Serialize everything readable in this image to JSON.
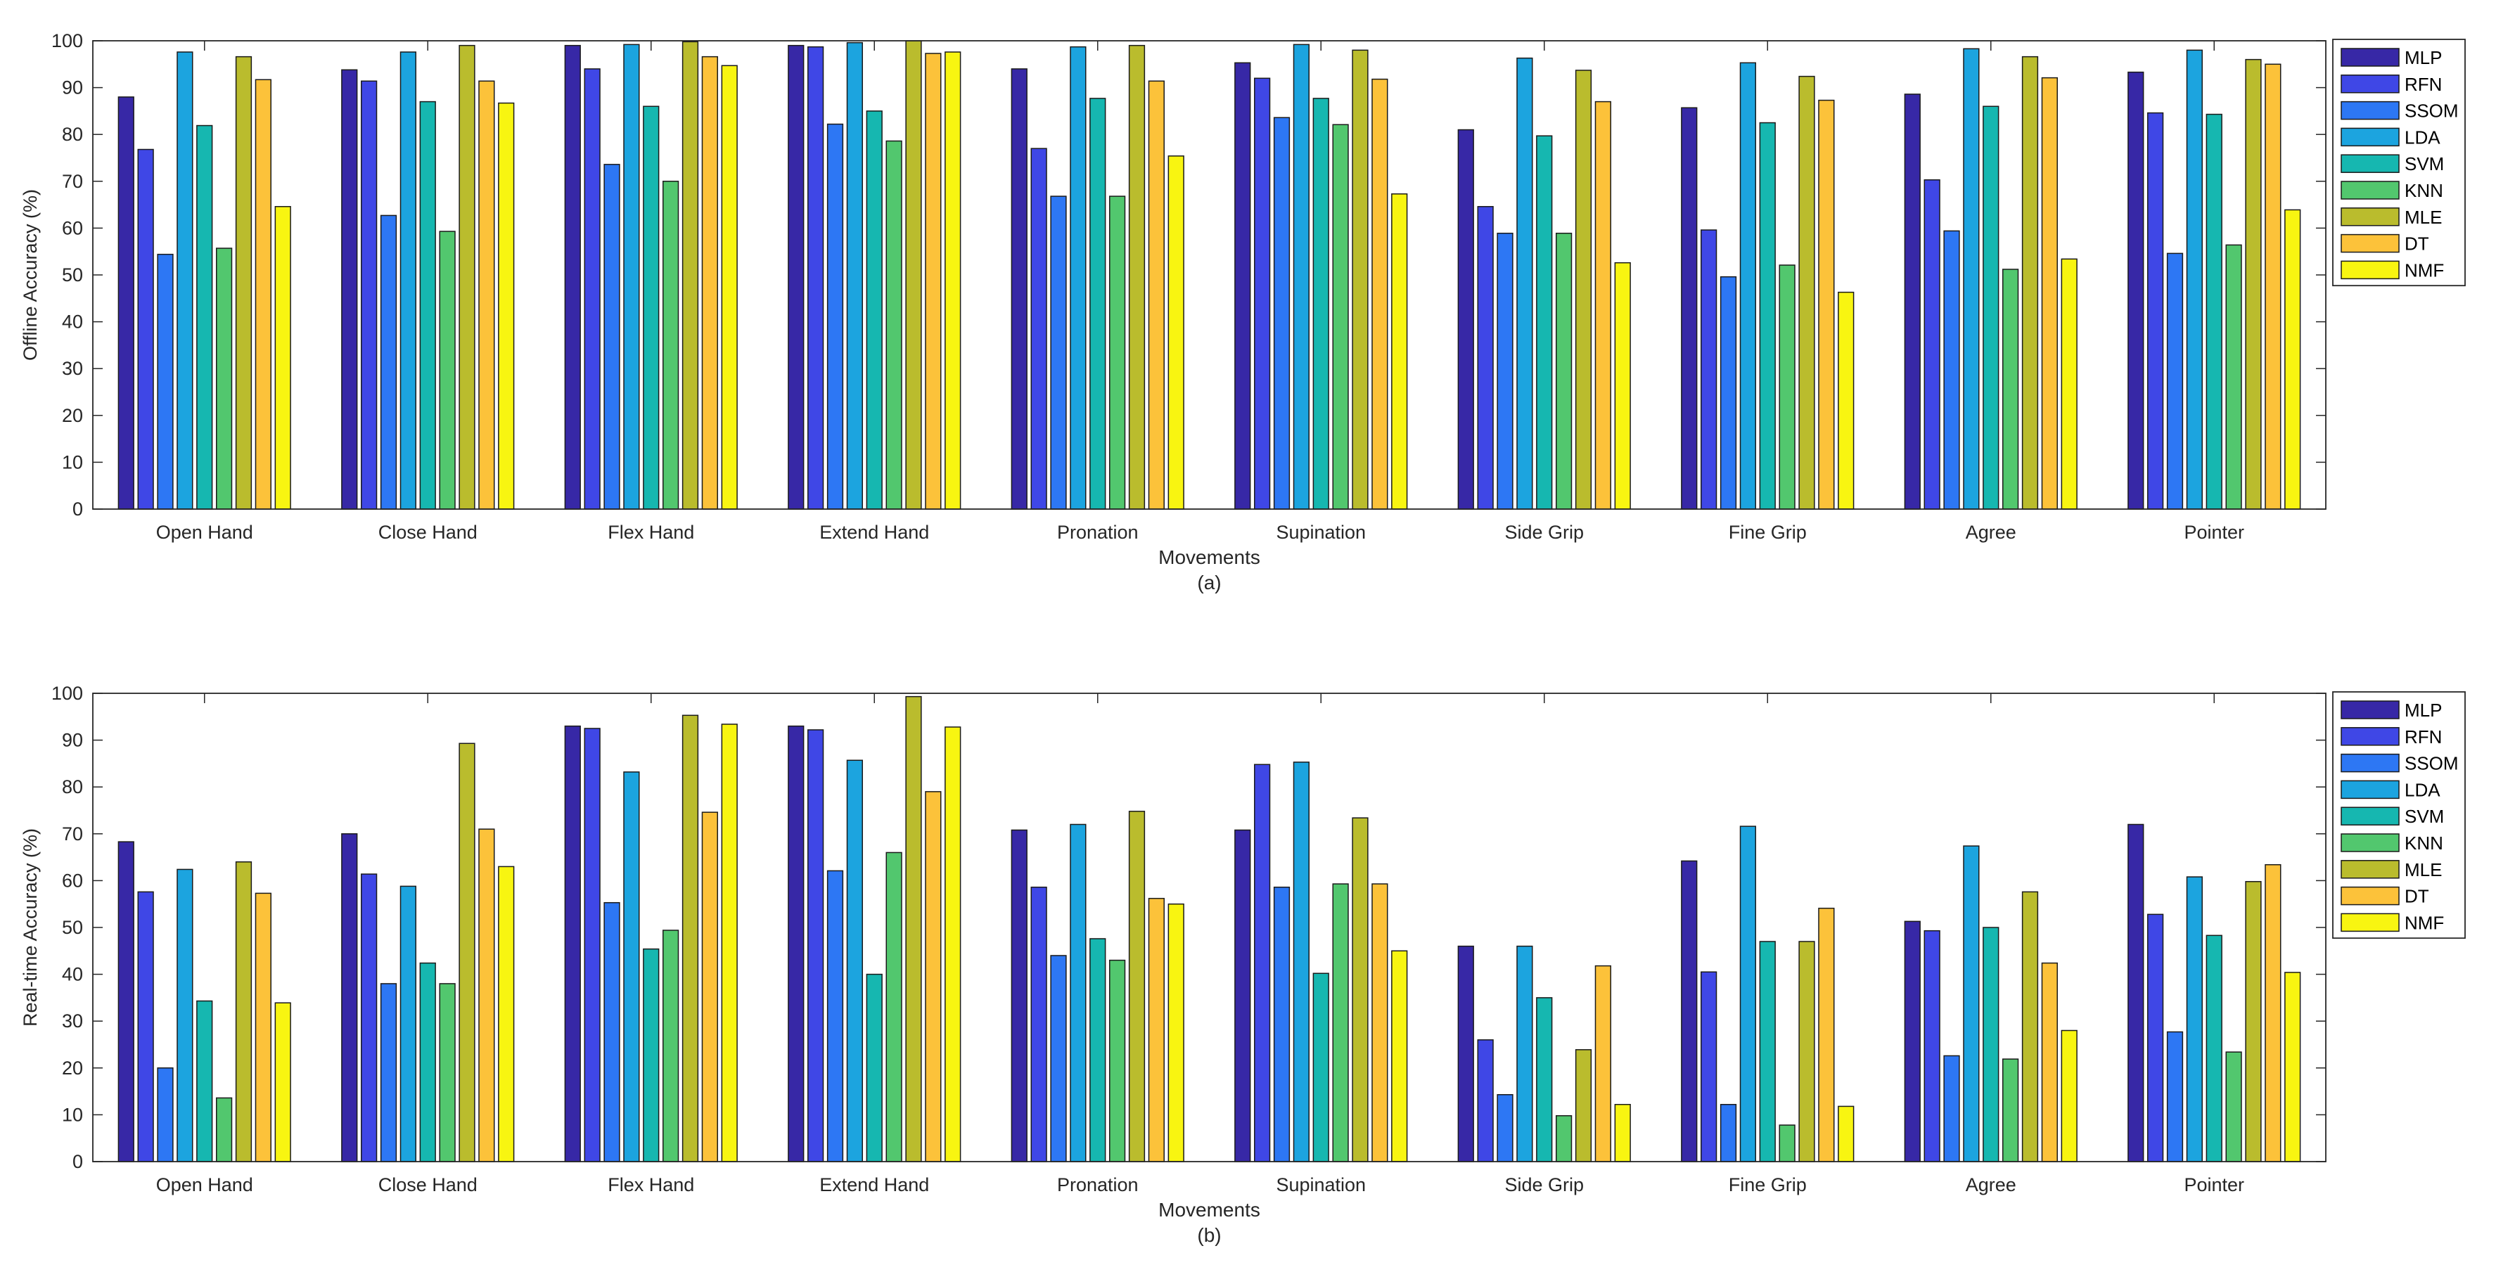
{
  "colors": {
    "MLP": "#3728A6",
    "RFN": "#3F47E6",
    "SSOM": "#2D77F4",
    "LDA": "#1CA4DF",
    "SVM": "#16B7B0",
    "KNN": "#52C76E",
    "MLE": "#BABC2D",
    "DT": "#FCC23A",
    "NMF": "#F8F511"
  },
  "chart_data": [
    {
      "type": "bar",
      "title": "",
      "caption": "(a)",
      "xlabel": "Movements",
      "ylabel": "Offline Accuracy (%)",
      "ylim": [
        0,
        100
      ],
      "yticks": [
        0,
        10,
        20,
        30,
        40,
        50,
        60,
        70,
        80,
        90,
        100
      ],
      "legend_position": "outside-right",
      "categories": [
        "Open Hand",
        "Close Hand",
        "Flex Hand",
        "Extend Hand",
        "Pronation",
        "Supination",
        "Side Grip",
        "Fine Grip",
        "Agree",
        "Pointer"
      ],
      "series": [
        {
          "name": "MLP",
          "values": [
            88,
            93.8,
            99,
            99,
            94,
            95.3,
            81,
            85.7,
            88.6,
            93.3
          ]
        },
        {
          "name": "RFN",
          "values": [
            76.8,
            91.4,
            94,
            98.7,
            77,
            92,
            64.6,
            59.6,
            70.3,
            84.6
          ]
        },
        {
          "name": "SSOM",
          "values": [
            54.4,
            62.7,
            73.6,
            82.2,
            66.8,
            83.6,
            58.9,
            49.6,
            59.4,
            54.6
          ]
        },
        {
          "name": "LDA",
          "values": [
            97.6,
            97.6,
            99.2,
            99.6,
            98.7,
            99.2,
            96.3,
            95.3,
            98.3,
            98
          ]
        },
        {
          "name": "SVM",
          "values": [
            81.9,
            87,
            86,
            85,
            87.7,
            87.7,
            79.7,
            82.5,
            86,
            84.3
          ]
        },
        {
          "name": "KNN",
          "values": [
            55.7,
            59.3,
            70,
            78.6,
            66.8,
            82.1,
            58.9,
            52.1,
            51.2,
            56.4
          ]
        },
        {
          "name": "MLE",
          "values": [
            96.6,
            99,
            99.8,
            100,
            99,
            98,
            93.7,
            92.4,
            96.6,
            96
          ]
        },
        {
          "name": "DT",
          "values": [
            91.7,
            91.4,
            96.6,
            97.3,
            91.4,
            91.8,
            87,
            87.3,
            92.1,
            95
          ]
        },
        {
          "name": "NMF",
          "values": [
            64.6,
            86.7,
            94.7,
            97.6,
            75.4,
            67.3,
            52.6,
            46.3,
            53.4,
            63.9
          ]
        }
      ]
    },
    {
      "type": "bar",
      "title": "",
      "caption": "(b)",
      "xlabel": "Movements",
      "ylabel": "Real-time Accuracy (%)",
      "ylim": [
        0,
        100
      ],
      "yticks": [
        0,
        10,
        20,
        30,
        40,
        50,
        60,
        70,
        80,
        90,
        100
      ],
      "legend_position": "outside-right",
      "categories": [
        "Open Hand",
        "Close Hand",
        "Flex Hand",
        "Extend Hand",
        "Pronation",
        "Supination",
        "Side Grip",
        "Fine Grip",
        "Agree",
        "Pointer"
      ],
      "series": [
        {
          "name": "MLP",
          "values": [
            68.3,
            70,
            93,
            93,
            70.8,
            70.8,
            46,
            64.2,
            51.3,
            72
          ]
        },
        {
          "name": "RFN",
          "values": [
            57.6,
            61.4,
            92.5,
            92.2,
            58.6,
            84.8,
            26,
            40.5,
            49.3,
            52.8
          ]
        },
        {
          "name": "SSOM",
          "values": [
            20,
            38,
            55.3,
            62.1,
            44,
            58.6,
            14.3,
            12.2,
            22.6,
            27.7
          ]
        },
        {
          "name": "LDA",
          "values": [
            62.4,
            58.8,
            83.2,
            85.7,
            72,
            85.3,
            46,
            71.6,
            67.4,
            60.8
          ]
        },
        {
          "name": "SVM",
          "values": [
            34.3,
            42.4,
            45.4,
            40,
            47.6,
            40.2,
            35,
            47,
            50,
            48.3
          ]
        },
        {
          "name": "KNN",
          "values": [
            13.6,
            38,
            49.4,
            66,
            43,
            59.3,
            9.8,
            7.8,
            21.9,
            23.4
          ]
        },
        {
          "name": "MLE",
          "values": [
            64,
            89.3,
            95.3,
            99.3,
            74.8,
            73.4,
            23.9,
            47,
            57.6,
            59.8
          ]
        },
        {
          "name": "DT",
          "values": [
            57.3,
            71,
            74.6,
            79,
            56.2,
            59.3,
            41.8,
            54.1,
            42.4,
            63.4
          ]
        },
        {
          "name": "NMF",
          "values": [
            33.9,
            63,
            93.4,
            92.8,
            55,
            45,
            12.2,
            11.8,
            28,
            40.4
          ]
        }
      ]
    }
  ]
}
